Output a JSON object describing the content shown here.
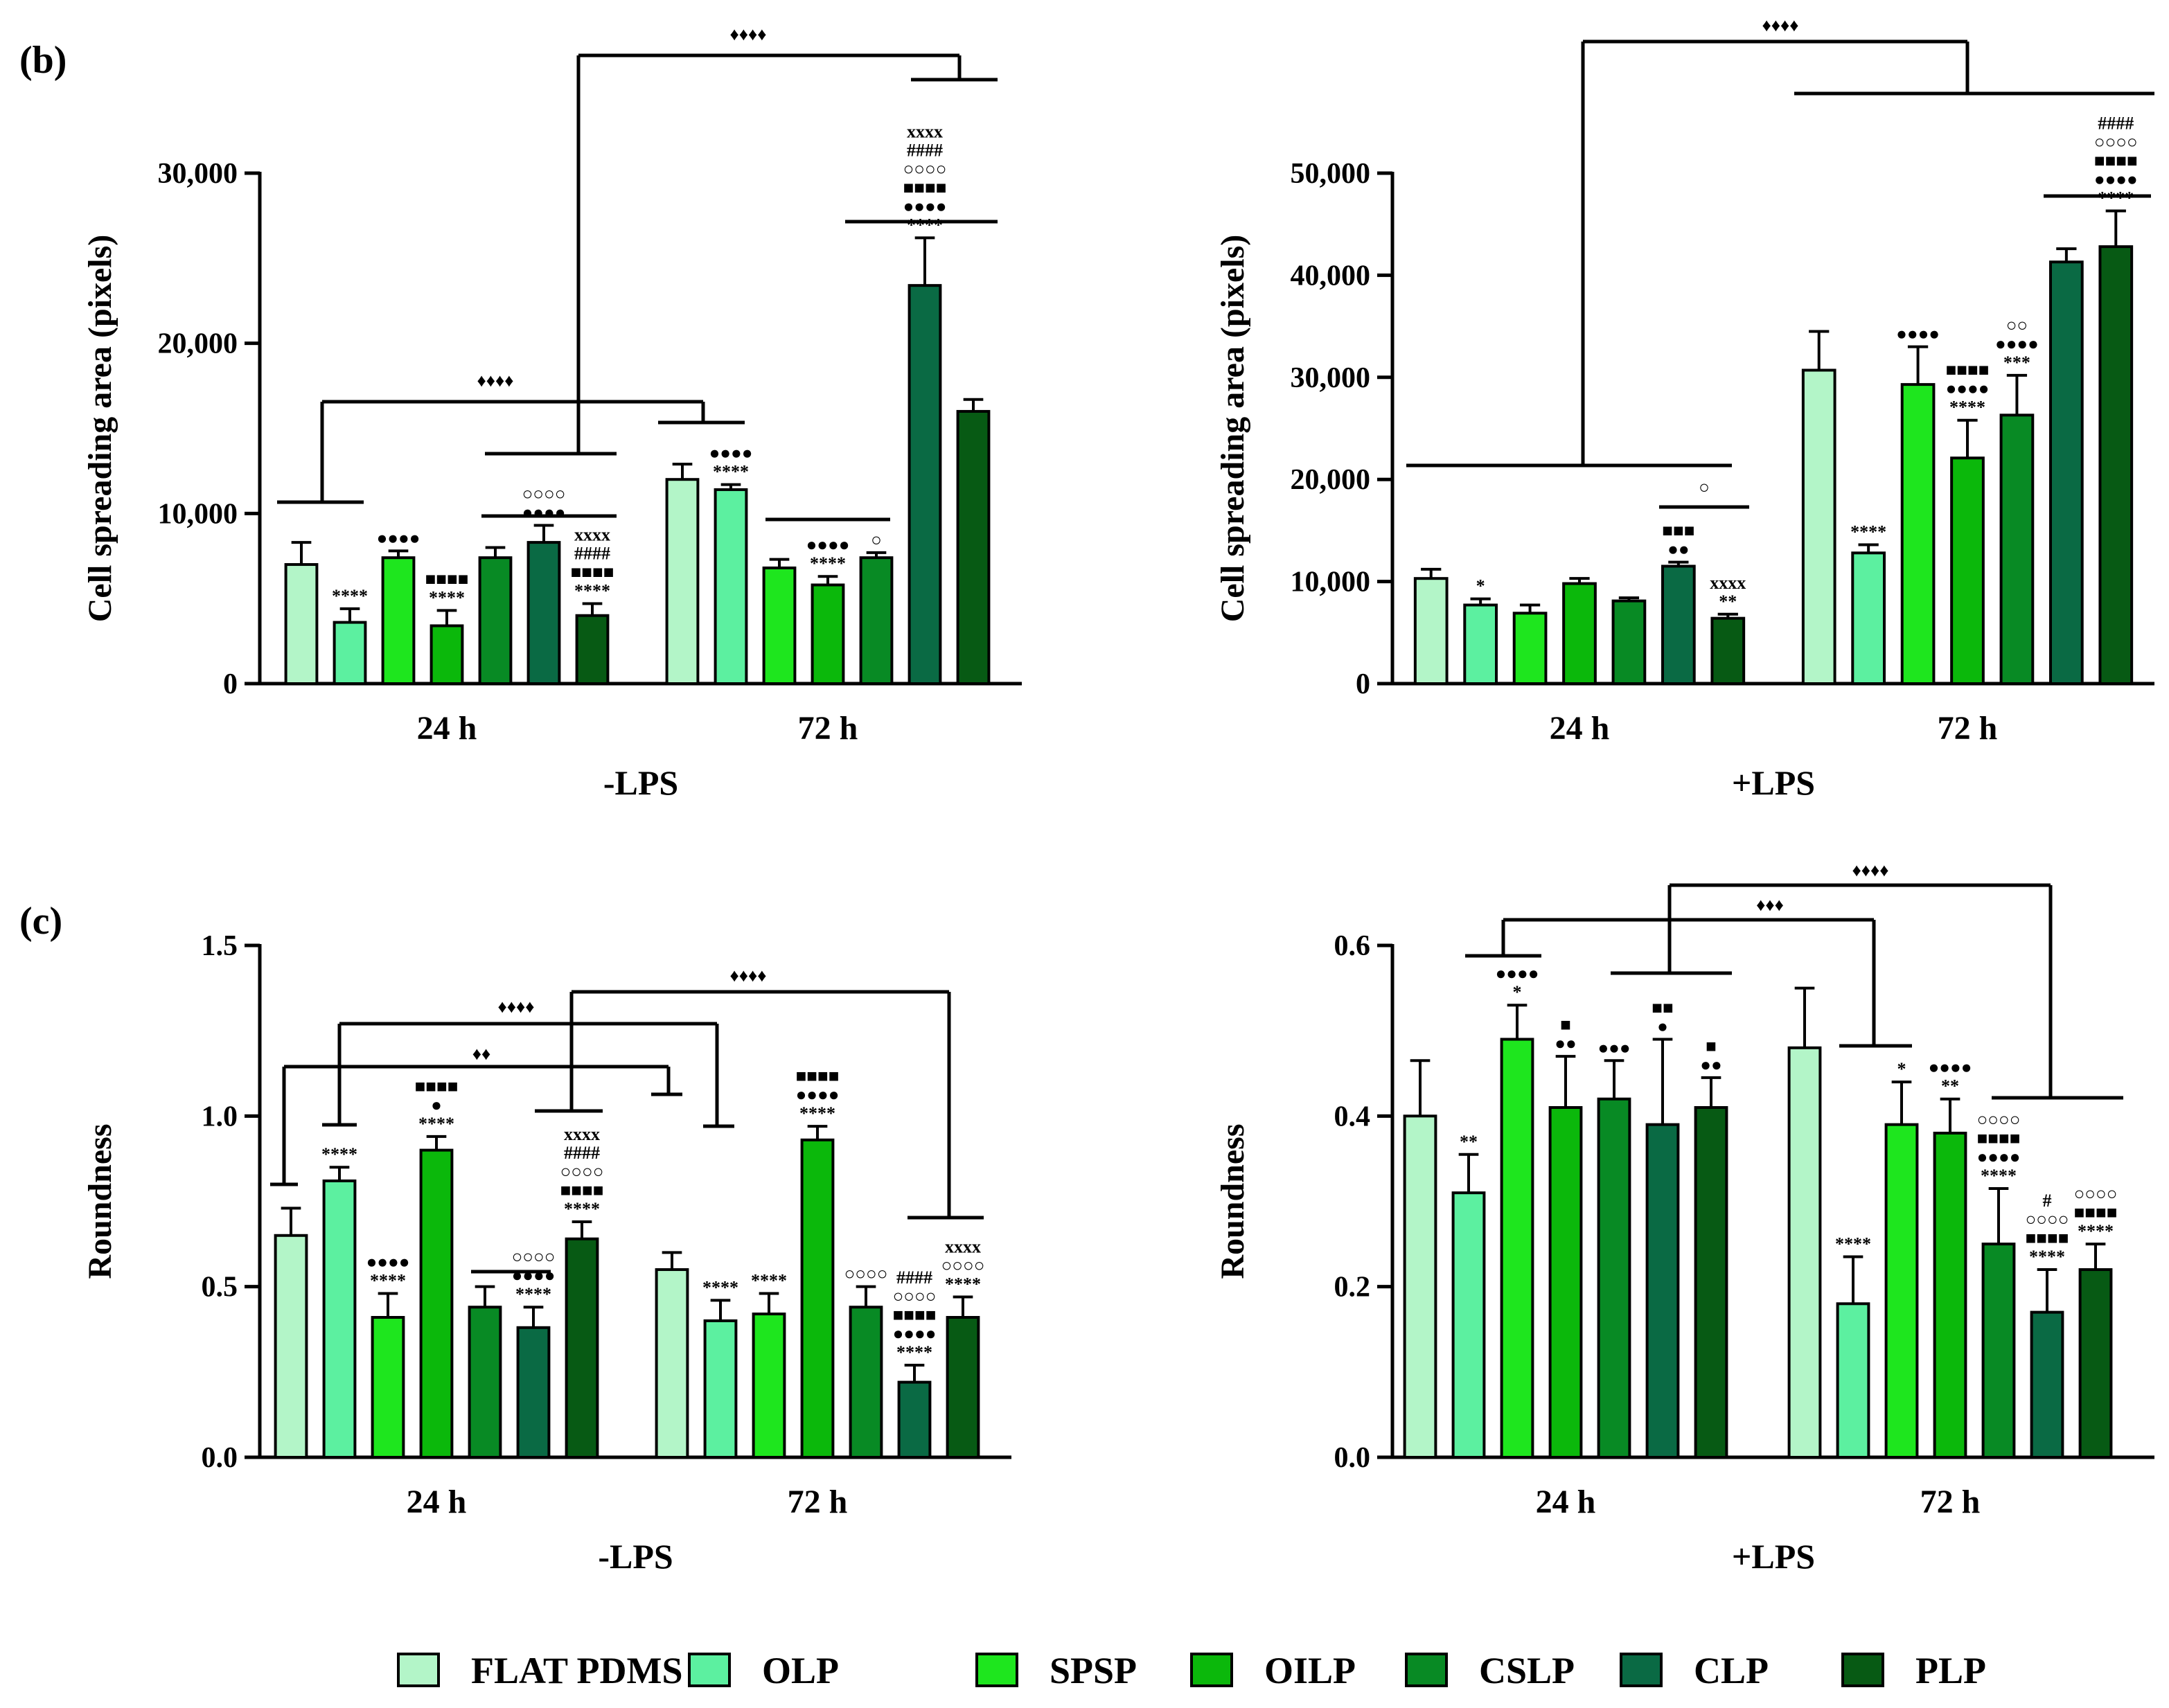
{
  "panel_letters": {
    "b": "(b)",
    "c": "(c)"
  },
  "legend": {
    "items": [
      {
        "label": "FLAT PDMS",
        "color": "#b3f5c8"
      },
      {
        "label": "OLP",
        "color": "#5cf0a0"
      },
      {
        "label": "SPSP",
        "color": "#1ee61e"
      },
      {
        "label": "OILP",
        "color": "#0bb80b"
      },
      {
        "label": "CSLP",
        "color": "#088a24"
      },
      {
        "label": "CLP",
        "color": "#0a6a44"
      },
      {
        "label": "PLP",
        "color": "#075a14"
      }
    ]
  },
  "chart_data": [
    {
      "id": "spread-minus",
      "type": "bar",
      "ylabel": "Cell spreading area (pixels)",
      "xlabel": "-LPS",
      "ylim": [
        0,
        30000
      ],
      "yticks": [
        0,
        10000,
        20000,
        30000
      ],
      "ytick_labels": [
        "0",
        "10,000",
        "20,000",
        "30,000"
      ],
      "categories": [
        "24 h",
        "72 h"
      ],
      "series": [
        {
          "name": "FLAT PDMS",
          "values": [
            7000,
            12000
          ],
          "errors": [
            1300,
            900
          ]
        },
        {
          "name": "OLP",
          "values": [
            3600,
            11400
          ],
          "errors": [
            800,
            300
          ]
        },
        {
          "name": "SPSP",
          "values": [
            7400,
            6800
          ],
          "errors": [
            400,
            500
          ]
        },
        {
          "name": "OILP",
          "values": [
            3400,
            5800
          ],
          "errors": [
            900,
            500
          ]
        },
        {
          "name": "CSLP",
          "values": [
            7400,
            7400
          ],
          "errors": [
            600,
            300
          ]
        },
        {
          "name": "CLP",
          "values": [
            8300,
            23400
          ],
          "errors": [
            1000,
            2800
          ]
        },
        {
          "name": "PLP",
          "values": [
            4000,
            16000
          ],
          "errors": [
            700,
            700
          ]
        }
      ],
      "annotations": [
        {
          "group": 0,
          "bar": 1,
          "lines": [
            "****"
          ]
        },
        {
          "group": 0,
          "bar": 2,
          "lines": [
            "●●●●"
          ]
        },
        {
          "group": 0,
          "bar": 3,
          "lines": [
            "■■■■",
            "****"
          ]
        },
        {
          "group": 0,
          "bar": 5,
          "lines": [
            "○○○○",
            "●●●●"
          ]
        },
        {
          "group": 0,
          "bar": 6,
          "lines": [
            "xxxx",
            "####",
            "■■■■",
            "****"
          ]
        },
        {
          "group": 1,
          "bar": 1,
          "lines": [
            "●●●●",
            "****"
          ]
        },
        {
          "group": 1,
          "bar": 3,
          "lines": [
            "●●●●",
            "****"
          ]
        },
        {
          "group": 1,
          "bar": 4,
          "lines": [
            "○"
          ]
        },
        {
          "group": 1,
          "bar": 5,
          "lines": [
            "xxxx",
            "####",
            "○○○○",
            "■■■■",
            "●●●●",
            "****"
          ]
        }
      ],
      "bracket_labels": [
        "♦♦♦♦",
        "♦♦♦♦"
      ]
    },
    {
      "id": "spread-plus",
      "type": "bar",
      "ylabel": "Cell spreading area (pixels)",
      "xlabel": "+LPS",
      "ylim": [
        0,
        50000
      ],
      "yticks": [
        0,
        10000,
        20000,
        30000,
        40000,
        50000
      ],
      "ytick_labels": [
        "0",
        "10,000",
        "20,000",
        "30,000",
        "40,000",
        "50,000"
      ],
      "categories": [
        "24 h",
        "72 h"
      ],
      "series": [
        {
          "name": "FLAT PDMS",
          "values": [
            10300,
            30700
          ],
          "errors": [
            900,
            3800
          ]
        },
        {
          "name": "OLP",
          "values": [
            7700,
            12800
          ],
          "errors": [
            600,
            800
          ]
        },
        {
          "name": "SPSP",
          "values": [
            6900,
            29300
          ],
          "errors": [
            800,
            3700
          ]
        },
        {
          "name": "OILP",
          "values": [
            9800,
            22100
          ],
          "errors": [
            500,
            3700
          ]
        },
        {
          "name": "CSLP",
          "values": [
            8100,
            26300
          ],
          "errors": [
            300,
            3900
          ]
        },
        {
          "name": "CLP",
          "values": [
            11500,
            41300
          ],
          "errors": [
            400,
            1300
          ]
        },
        {
          "name": "PLP",
          "values": [
            6400,
            42800
          ],
          "errors": [
            400,
            3500
          ]
        }
      ],
      "annotations": [
        {
          "group": 0,
          "bar": 1,
          "lines": [
            "*"
          ]
        },
        {
          "group": 0,
          "bar": 5,
          "lines": [
            "■■■",
            "●●"
          ]
        },
        {
          "group": 0,
          "bar": 6,
          "lines": [
            "xxxx",
            "**"
          ]
        },
        {
          "group": 1,
          "bar": 1,
          "lines": [
            "****"
          ]
        },
        {
          "group": 1,
          "bar": 2,
          "lines": [
            "●●●●"
          ]
        },
        {
          "group": 1,
          "bar": 3,
          "lines": [
            "■■■■",
            "●●●●",
            "****"
          ]
        },
        {
          "group": 1,
          "bar": 4,
          "lines": [
            "○○",
            "●●●●",
            "***"
          ]
        },
        {
          "group": 1,
          "bar": 6,
          "lines": [
            "####",
            "○○○○",
            "■■■■",
            "●●●●",
            "****"
          ]
        }
      ],
      "bracket_labels": [
        "○",
        "♦♦♦♦"
      ]
    },
    {
      "id": "round-minus",
      "type": "bar",
      "ylabel": "Roundness",
      "xlabel": "-LPS",
      "ylim": [
        0,
        1.5
      ],
      "yticks": [
        0,
        0.5,
        1.0,
        1.5
      ],
      "ytick_labels": [
        "0.0",
        "0.5",
        "1.0",
        "1.5"
      ],
      "categories": [
        "24 h",
        "72 h"
      ],
      "series": [
        {
          "name": "FLAT PDMS",
          "values": [
            0.65,
            0.55
          ],
          "errors": [
            0.08,
            0.05
          ]
        },
        {
          "name": "OLP",
          "values": [
            0.81,
            0.4
          ],
          "errors": [
            0.04,
            0.06
          ]
        },
        {
          "name": "SPSP",
          "values": [
            0.41,
            0.42
          ],
          "errors": [
            0.07,
            0.06
          ]
        },
        {
          "name": "OILP",
          "values": [
            0.9,
            0.93
          ],
          "errors": [
            0.04,
            0.04
          ]
        },
        {
          "name": "CSLP",
          "values": [
            0.44,
            0.44
          ],
          "errors": [
            0.06,
            0.06
          ]
        },
        {
          "name": "CLP",
          "values": [
            0.38,
            0.22
          ],
          "errors": [
            0.06,
            0.05
          ]
        },
        {
          "name": "PLP",
          "values": [
            0.64,
            0.41
          ],
          "errors": [
            0.05,
            0.06
          ]
        }
      ],
      "annotations": [
        {
          "group": 0,
          "bar": 1,
          "lines": [
            "****"
          ]
        },
        {
          "group": 0,
          "bar": 2,
          "lines": [
            "●●●●",
            "****"
          ]
        },
        {
          "group": 0,
          "bar": 3,
          "lines": [
            "■■■■",
            "●",
            "****"
          ]
        },
        {
          "group": 0,
          "bar": 5,
          "lines": [
            "○○○○",
            "●●●●",
            "****"
          ]
        },
        {
          "group": 0,
          "bar": 6,
          "lines": [
            "xxxx",
            "####",
            "○○○○",
            "■■■■",
            "****"
          ]
        },
        {
          "group": 1,
          "bar": 1,
          "lines": [
            "****"
          ]
        },
        {
          "group": 1,
          "bar": 2,
          "lines": [
            "****"
          ]
        },
        {
          "group": 1,
          "bar": 3,
          "lines": [
            "■■■■",
            "●●●●",
            "****"
          ]
        },
        {
          "group": 1,
          "bar": 4,
          "lines": [
            "○○○○"
          ]
        },
        {
          "group": 1,
          "bar": 5,
          "lines": [
            "####",
            "○○○○",
            "■■■■",
            "●●●●",
            "****"
          ]
        },
        {
          "group": 1,
          "bar": 6,
          "lines": [
            "xxxx",
            "○○○○",
            "****"
          ]
        }
      ],
      "bracket_labels": [
        "♦♦",
        "♦♦♦♦",
        "♦♦♦♦"
      ]
    },
    {
      "id": "round-plus",
      "type": "bar",
      "ylabel": "Roundness",
      "xlabel": "+LPS",
      "ylim": [
        0,
        0.6
      ],
      "yticks": [
        0,
        0.2,
        0.4,
        0.6
      ],
      "ytick_labels": [
        "0.0",
        "0.2",
        "0.4",
        "0.6"
      ],
      "categories": [
        "24 h",
        "72 h"
      ],
      "series": [
        {
          "name": "FLAT PDMS",
          "values": [
            0.4,
            0.48
          ],
          "errors": [
            0.065,
            0.07
          ]
        },
        {
          "name": "OLP",
          "values": [
            0.31,
            0.18
          ],
          "errors": [
            0.045,
            0.055
          ]
        },
        {
          "name": "SPSP",
          "values": [
            0.49,
            0.39
          ],
          "errors": [
            0.04,
            0.05
          ]
        },
        {
          "name": "OILP",
          "values": [
            0.41,
            0.38
          ],
          "errors": [
            0.06,
            0.04
          ]
        },
        {
          "name": "CSLP",
          "values": [
            0.42,
            0.25
          ],
          "errors": [
            0.045,
            0.065
          ]
        },
        {
          "name": "CLP",
          "values": [
            0.39,
            0.17
          ],
          "errors": [
            0.1,
            0.05
          ]
        },
        {
          "name": "PLP",
          "values": [
            0.41,
            0.22
          ],
          "errors": [
            0.035,
            0.03
          ]
        }
      ],
      "annotations": [
        {
          "group": 0,
          "bar": 1,
          "lines": [
            "**"
          ]
        },
        {
          "group": 0,
          "bar": 2,
          "lines": [
            "●●●●",
            "*"
          ]
        },
        {
          "group": 0,
          "bar": 3,
          "lines": [
            "■",
            "●●"
          ]
        },
        {
          "group": 0,
          "bar": 4,
          "lines": [
            "●●●"
          ]
        },
        {
          "group": 0,
          "bar": 5,
          "lines": [
            "■■",
            "●"
          ]
        },
        {
          "group": 0,
          "bar": 6,
          "lines": [
            "■",
            "●●"
          ]
        },
        {
          "group": 1,
          "bar": 1,
          "lines": [
            "****"
          ]
        },
        {
          "group": 1,
          "bar": 2,
          "lines": [
            "*"
          ]
        },
        {
          "group": 1,
          "bar": 3,
          "lines": [
            "●●●●",
            "**"
          ]
        },
        {
          "group": 1,
          "bar": 4,
          "lines": [
            "○○○○",
            "■■■■",
            "●●●●",
            "****"
          ]
        },
        {
          "group": 1,
          "bar": 5,
          "lines": [
            "#",
            "○○○○",
            "■■■■",
            "****"
          ]
        },
        {
          "group": 1,
          "bar": 6,
          "lines": [
            "○○○○",
            "■■■■",
            "****"
          ]
        }
      ],
      "bracket_labels": [
        "♦♦♦",
        "♦♦♦♦"
      ]
    }
  ]
}
